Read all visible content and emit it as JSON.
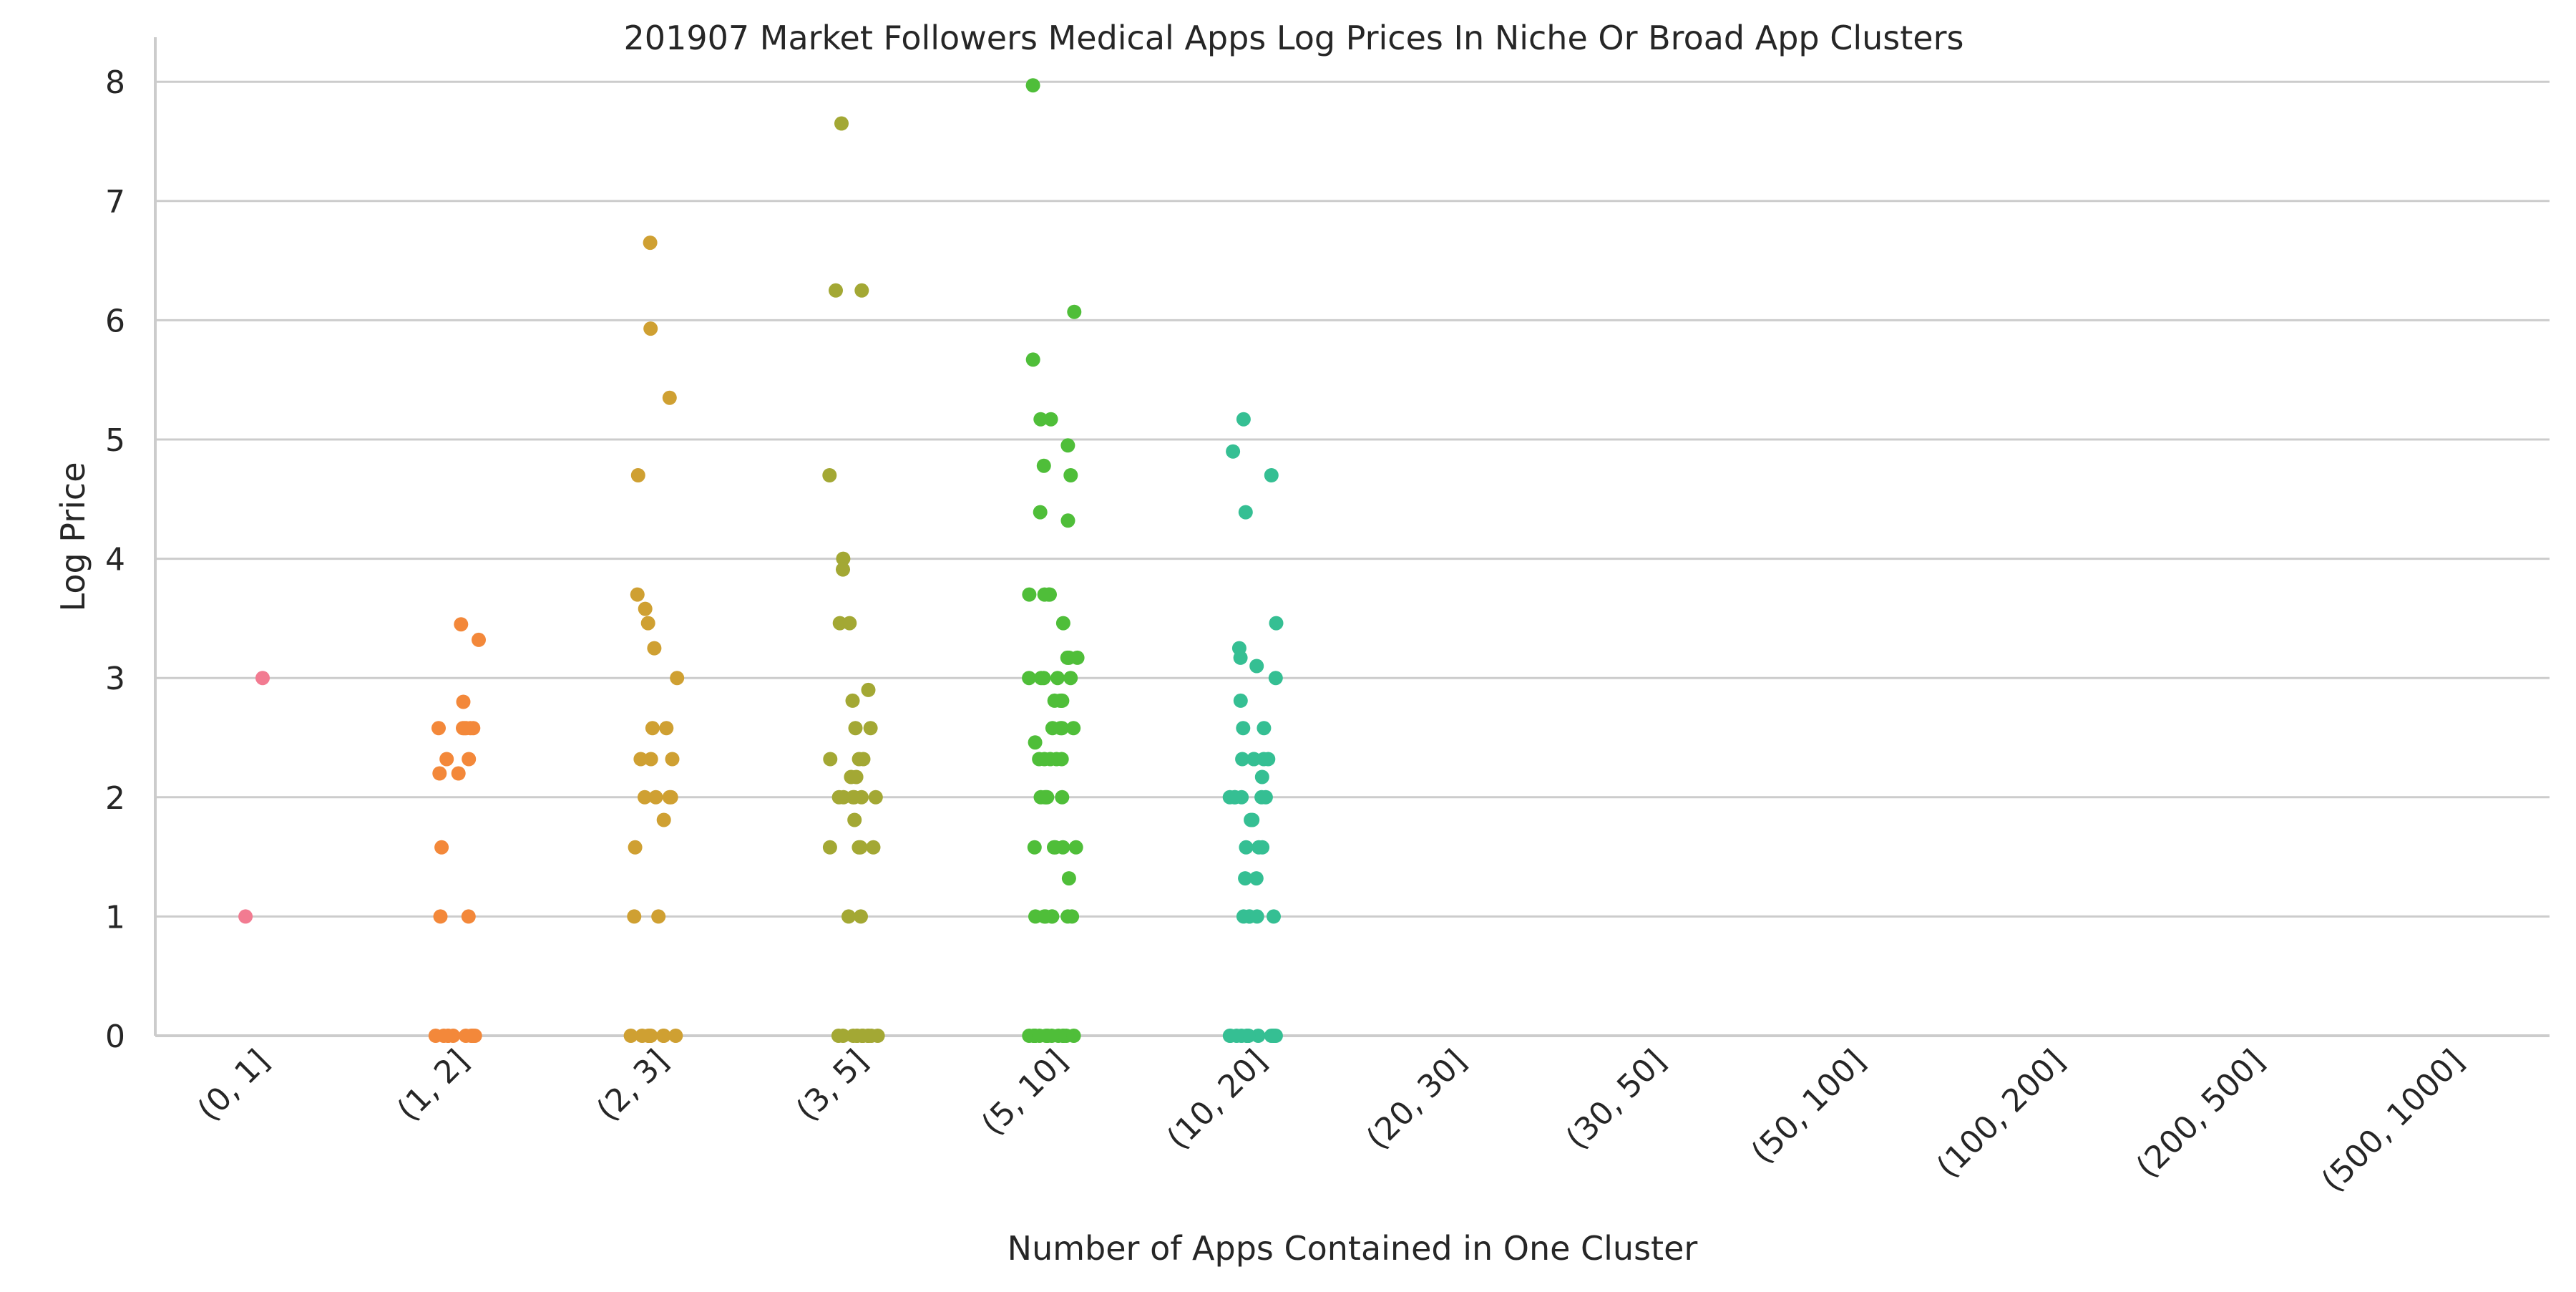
{
  "chart_data": {
    "type": "scatter",
    "title": "201907 Market Followers Medical Apps Log Prices In Niche Or Broad App Clusters",
    "xlabel": "Number of Apps Contained in One Cluster",
    "ylabel": "Log Price",
    "categories": [
      "(0, 1]",
      "(1, 2]",
      "(2, 3]",
      "(3, 5]",
      "(5, 10]",
      "(10, 20]",
      "(20, 30]",
      "(30, 50]",
      "(50, 100]",
      "(100, 200]",
      "(200, 500]",
      "(500, 1000]"
    ],
    "ylim": [
      0,
      8.3
    ],
    "yticks": [
      0,
      1,
      2,
      3,
      4,
      5,
      6,
      7,
      8
    ],
    "grid": "horizontal",
    "legend": "none",
    "series_colors": [
      "#f27b91",
      "#f3883a",
      "#cfa032",
      "#a3a834",
      "#4fbe39",
      "#35bf93",
      "#38bcb6",
      "#3ab8d1",
      "#4aabe8",
      "#8f96f3",
      "#d07ef0",
      "#f06ed0"
    ],
    "series": [
      {
        "category": "(0, 1]",
        "values": [
          3.0,
          1.0
        ]
      },
      {
        "category": "(1, 2]",
        "values": [
          3.45,
          3.32,
          2.8,
          2.58,
          2.58,
          2.58,
          2.58,
          2.58,
          2.58,
          2.32,
          2.32,
          2.2,
          2.2,
          1.58,
          1.0,
          1.0,
          0,
          0,
          0,
          0,
          0,
          0,
          0,
          0,
          0,
          0
        ]
      },
      {
        "category": "(2, 3]",
        "values": [
          6.65,
          5.93,
          5.35,
          4.7,
          3.7,
          3.58,
          3.46,
          3.25,
          3.0,
          2.58,
          2.58,
          2.32,
          2.32,
          2.32,
          2.0,
          2.0,
          2.0,
          2.0,
          1.81,
          1.58,
          1.0,
          1.0,
          0,
          0,
          0,
          0,
          0,
          0,
          0,
          0,
          0,
          0
        ]
      },
      {
        "category": "(3, 5]",
        "values": [
          7.65,
          6.25,
          6.25,
          4.7,
          4.0,
          3.91,
          3.46,
          3.46,
          2.9,
          2.81,
          2.58,
          2.58,
          2.32,
          2.32,
          2.32,
          2.17,
          2.17,
          2.0,
          2.0,
          2.0,
          2.0,
          2.0,
          2.0,
          1.81,
          1.58,
          1.58,
          1.58,
          1.58,
          1.0,
          1.0,
          0,
          0,
          0,
          0,
          0,
          0,
          0,
          0,
          0,
          0,
          0,
          0
        ]
      },
      {
        "category": "(5, 10]",
        "values": [
          7.97,
          6.07,
          5.67,
          5.17,
          5.17,
          4.95,
          4.78,
          4.7,
          4.39,
          4.32,
          3.7,
          3.7,
          3.7,
          3.7,
          3.46,
          3.17,
          3.17,
          3.17,
          3.0,
          3.0,
          3.0,
          3.0,
          3.0,
          2.81,
          2.81,
          2.81,
          2.81,
          2.58,
          2.58,
          2.58,
          2.58,
          2.46,
          2.32,
          2.32,
          2.32,
          2.32,
          2.32,
          2.0,
          2.0,
          2.0,
          2.0,
          2.0,
          1.58,
          1.58,
          1.58,
          1.58,
          1.58,
          1.32,
          1.0,
          1.0,
          1.0,
          1.0,
          1.0,
          1.0,
          1.0,
          0,
          0,
          0,
          0,
          0,
          0,
          0,
          0,
          0,
          0,
          0,
          0,
          0,
          0
        ]
      },
      {
        "category": "(10, 20]",
        "values": [
          5.17,
          4.9,
          4.7,
          4.39,
          3.46,
          3.25,
          3.17,
          3.1,
          3.0,
          2.81,
          2.58,
          2.58,
          2.32,
          2.32,
          2.32,
          2.32,
          2.32,
          2.17,
          2.0,
          2.0,
          2.0,
          2.0,
          2.0,
          2.0,
          1.81,
          1.81,
          1.58,
          1.58,
          1.58,
          1.32,
          1.32,
          1.0,
          1.0,
          1.0,
          1.0,
          1.0,
          0,
          0,
          0,
          0,
          0,
          0,
          0,
          0,
          0,
          0,
          0,
          0,
          0,
          0
        ]
      },
      {
        "category": "(20, 30]",
        "values": []
      },
      {
        "category": "(30, 50]",
        "values": []
      },
      {
        "category": "(50, 100]",
        "values": []
      },
      {
        "category": "(100, 200]",
        "values": []
      },
      {
        "category": "(200, 500]",
        "values": []
      },
      {
        "category": "(500, 1000]",
        "values": []
      }
    ]
  }
}
